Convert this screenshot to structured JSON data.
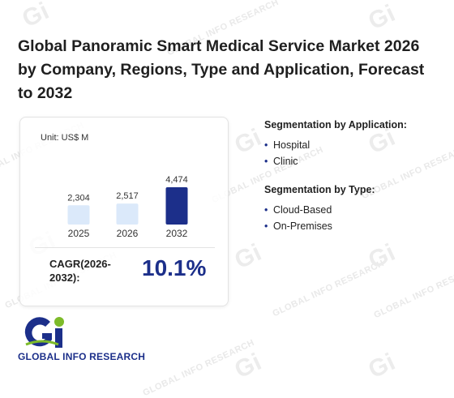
{
  "title": "Global Panoramic Smart Medical Service Market 2026 by Company, Regions, Type and Application, Forecast to 2032",
  "chart_data": {
    "type": "bar",
    "unit_label": "Unit: US$ M",
    "categories": [
      "2025",
      "2026",
      "2032"
    ],
    "values": [
      2304,
      2517,
      4474
    ],
    "value_labels": [
      "2,304",
      "2,517",
      "4,474"
    ],
    "colors": [
      "#dbe9fa",
      "#dbe9fa",
      "#1c2f8a"
    ]
  },
  "cagr": {
    "label": "CAGR(2026-2032):",
    "value": "10.1%"
  },
  "segments": {
    "application": {
      "heading": "Segmentation by Application:",
      "items": [
        "Hospital",
        "Clinic"
      ]
    },
    "type": {
      "heading": "Segmentation by Type:",
      "items": [
        "Cloud-Based",
        "On-Premises"
      ]
    }
  },
  "logo": {
    "text": "GLOBAL INFO RESEARCH",
    "mark": "Gi",
    "colors": {
      "blue": "#1c2f8a",
      "green": "#7dbb2a"
    }
  },
  "watermark": {
    "text": "GLOBAL INFO RESEARCH",
    "mark": "Gi"
  }
}
